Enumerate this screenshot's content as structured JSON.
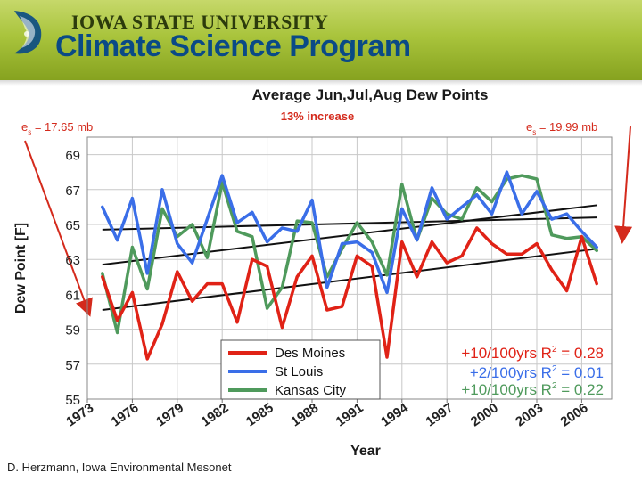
{
  "header": {
    "institution": "IOWA STATE UNIVERSITY",
    "program": "Climate Science Program"
  },
  "footer": {
    "credit": "D. Herzmann, Iowa Environmental Mesonet"
  },
  "annotations": {
    "increase": "13% increase",
    "es_left": {
      "symbol": "e",
      "subscript": "s",
      "value": " = 17.65 mb"
    },
    "es_right": {
      "symbol": "e",
      "subscript": "s",
      "value": " = 19.99 mb"
    }
  },
  "colors": {
    "des_moines": "#e02216",
    "st_louis": "#3a6ee8",
    "kansas_city": "#4f9a5c",
    "annotation_red": "#d42a1c",
    "trend": "#111111",
    "banner_blue": "#0a4a86"
  },
  "chart_data": {
    "type": "line",
    "title": "Average Jun,Jul,Aug Dew Points",
    "xlabel": "Year",
    "ylabel": "Dew Point [F]",
    "xlim": [
      1973,
      2008
    ],
    "ylim": [
      55,
      70
    ],
    "x_ticks": [
      1973,
      1976,
      1979,
      1982,
      1985,
      1988,
      1991,
      1994,
      1997,
      2000,
      2003,
      2006
    ],
    "y_ticks": [
      55,
      57,
      59,
      61,
      63,
      65,
      67,
      69
    ],
    "x": [
      1974,
      1975,
      1976,
      1977,
      1978,
      1979,
      1980,
      1981,
      1982,
      1983,
      1984,
      1985,
      1986,
      1987,
      1988,
      1989,
      1990,
      1991,
      1992,
      1993,
      1994,
      1995,
      1996,
      1997,
      1998,
      1999,
      2000,
      2001,
      2002,
      2003,
      2004,
      2005,
      2006,
      2007
    ],
    "series": [
      {
        "name": "Des Moines",
        "color_key": "des_moines",
        "values": [
          62.0,
          59.5,
          61.1,
          57.3,
          59.3,
          62.3,
          60.6,
          61.6,
          61.6,
          59.4,
          63.0,
          62.6,
          59.1,
          62.0,
          63.2,
          60.1,
          60.3,
          63.2,
          62.6,
          57.4,
          64.0,
          62.0,
          64.0,
          62.8,
          63.2,
          64.8,
          63.9,
          63.3,
          63.3,
          63.9,
          62.4,
          61.2,
          64.3,
          61.6
        ]
      },
      {
        "name": "St Louis",
        "color_key": "st_louis",
        "values": [
          66.0,
          64.1,
          66.5,
          62.2,
          67.0,
          63.9,
          62.8,
          65.3,
          67.8,
          65.1,
          65.7,
          64.0,
          64.8,
          64.6,
          66.4,
          61.4,
          63.9,
          64.0,
          63.4,
          61.1,
          65.9,
          64.1,
          67.1,
          65.3,
          66.0,
          66.7,
          65.6,
          68.0,
          65.6,
          66.9,
          65.3,
          65.6,
          64.6,
          63.7
        ]
      },
      {
        "name": "Kansas City",
        "color_key": "kansas_city",
        "values": [
          62.2,
          58.8,
          63.7,
          61.3,
          65.9,
          64.3,
          65.0,
          63.1,
          67.4,
          64.6,
          64.3,
          60.2,
          61.4,
          65.2,
          65.1,
          62.0,
          63.6,
          65.1,
          64.0,
          62.1,
          67.3,
          64.1,
          66.5,
          65.6,
          65.3,
          67.1,
          66.3,
          67.6,
          67.8,
          67.6,
          64.4,
          64.2,
          64.3,
          63.5
        ]
      }
    ],
    "trends": [
      {
        "start": [
          1974,
          60.1
        ],
        "end": [
          2007,
          63.6
        ]
      },
      {
        "start": [
          1974,
          62.7
        ],
        "end": [
          2007,
          66.1
        ]
      },
      {
        "start": [
          1974,
          64.7
        ],
        "end": [
          2007,
          65.4
        ]
      }
    ],
    "legend": {
      "location": "bottom-right",
      "entries": [
        {
          "label": "Des Moines",
          "stat_prefix": "+10/100yrs R",
          "stat_sup": "2",
          "stat_suffix": " = 0.28"
        },
        {
          "label": "St Louis",
          "stat_prefix": "+2/100yrs R",
          "stat_sup": "2",
          "stat_suffix": " = 0.01"
        },
        {
          "label": "Kansas City",
          "stat_prefix": "+10/100yrs R",
          "stat_sup": "2",
          "stat_suffix": " = 0.22"
        }
      ]
    },
    "grid": true
  }
}
